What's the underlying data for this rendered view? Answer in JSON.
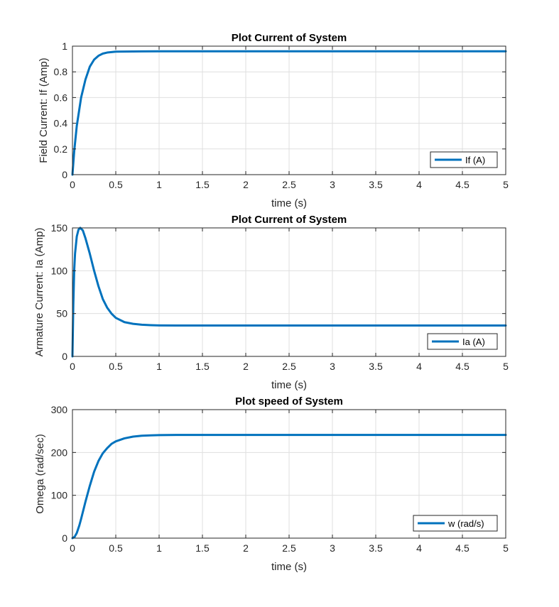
{
  "chart_data": [
    {
      "type": "line",
      "title": "Plot Current of System",
      "xlabel": "time (s)",
      "ylabel": "Field Current: If (Amp)",
      "xlim": [
        0,
        5
      ],
      "ylim": [
        0,
        1
      ],
      "xticks": [
        0,
        0.5,
        1,
        1.5,
        2,
        2.5,
        3,
        3.5,
        4,
        4.5,
        5
      ],
      "yticks": [
        0,
        0.2,
        0.4,
        0.6,
        0.8,
        1
      ],
      "grid": true,
      "legend": "bottom-right",
      "series": [
        {
          "name": "If (A)",
          "color": "#0072BD",
          "x": [
            0,
            0.02,
            0.05,
            0.1,
            0.15,
            0.2,
            0.25,
            0.3,
            0.35,
            0.4,
            0.5,
            0.6,
            0.8,
            1,
            2,
            3,
            4,
            5
          ],
          "y": [
            0,
            0.18,
            0.38,
            0.6,
            0.74,
            0.84,
            0.895,
            0.925,
            0.942,
            0.95,
            0.957,
            0.958,
            0.959,
            0.96,
            0.96,
            0.96,
            0.96,
            0.96
          ]
        }
      ]
    },
    {
      "type": "line",
      "title": "Plot Current of System",
      "xlabel": "time (s)",
      "ylabel": "Armature Current: Ia (Amp)",
      "xlim": [
        0,
        5
      ],
      "ylim": [
        0,
        150
      ],
      "xticks": [
        0,
        0.5,
        1,
        1.5,
        2,
        2.5,
        3,
        3.5,
        4,
        4.5,
        5
      ],
      "yticks": [
        0,
        50,
        100,
        150
      ],
      "grid": true,
      "legend": "bottom-right",
      "series": [
        {
          "name": "Ia (A)",
          "color": "#0072BD",
          "x": [
            0,
            0.01,
            0.02,
            0.03,
            0.05,
            0.07,
            0.09,
            0.12,
            0.15,
            0.2,
            0.25,
            0.3,
            0.35,
            0.4,
            0.45,
            0.5,
            0.6,
            0.7,
            0.8,
            0.9,
            1,
            1.2,
            1.5,
            2,
            3,
            4,
            5
          ],
          "y": [
            0,
            60,
            100,
            120,
            140,
            148,
            150,
            147,
            138,
            120,
            100,
            82,
            67,
            57,
            50,
            45,
            40,
            38,
            37,
            36.5,
            36.2,
            36,
            36,
            36,
            36,
            36,
            36
          ]
        }
      ]
    },
    {
      "type": "line",
      "title": "Plot speed of System",
      "xlabel": "time (s)",
      "ylabel": "Omega (rad/sec)",
      "xlim": [
        0,
        5
      ],
      "ylim": [
        0,
        300
      ],
      "xticks": [
        0,
        0.5,
        1,
        1.5,
        2,
        2.5,
        3,
        3.5,
        4,
        4.5,
        5
      ],
      "yticks": [
        0,
        100,
        200,
        300
      ],
      "grid": true,
      "legend": "bottom-right",
      "series": [
        {
          "name": "w (rad/s)",
          "color": "#0072BD",
          "x": [
            0,
            0.025,
            0.05,
            0.08,
            0.1,
            0.15,
            0.2,
            0.25,
            0.3,
            0.35,
            0.4,
            0.45,
            0.5,
            0.6,
            0.7,
            0.8,
            0.9,
            1,
            1.2,
            1.5,
            2,
            3,
            4,
            5
          ],
          "y": [
            0,
            3,
            12,
            30,
            45,
            85,
            122,
            155,
            180,
            198,
            210,
            220,
            226,
            233,
            237,
            239,
            240,
            240.5,
            241,
            241,
            241,
            241,
            241,
            241
          ]
        }
      ]
    }
  ]
}
